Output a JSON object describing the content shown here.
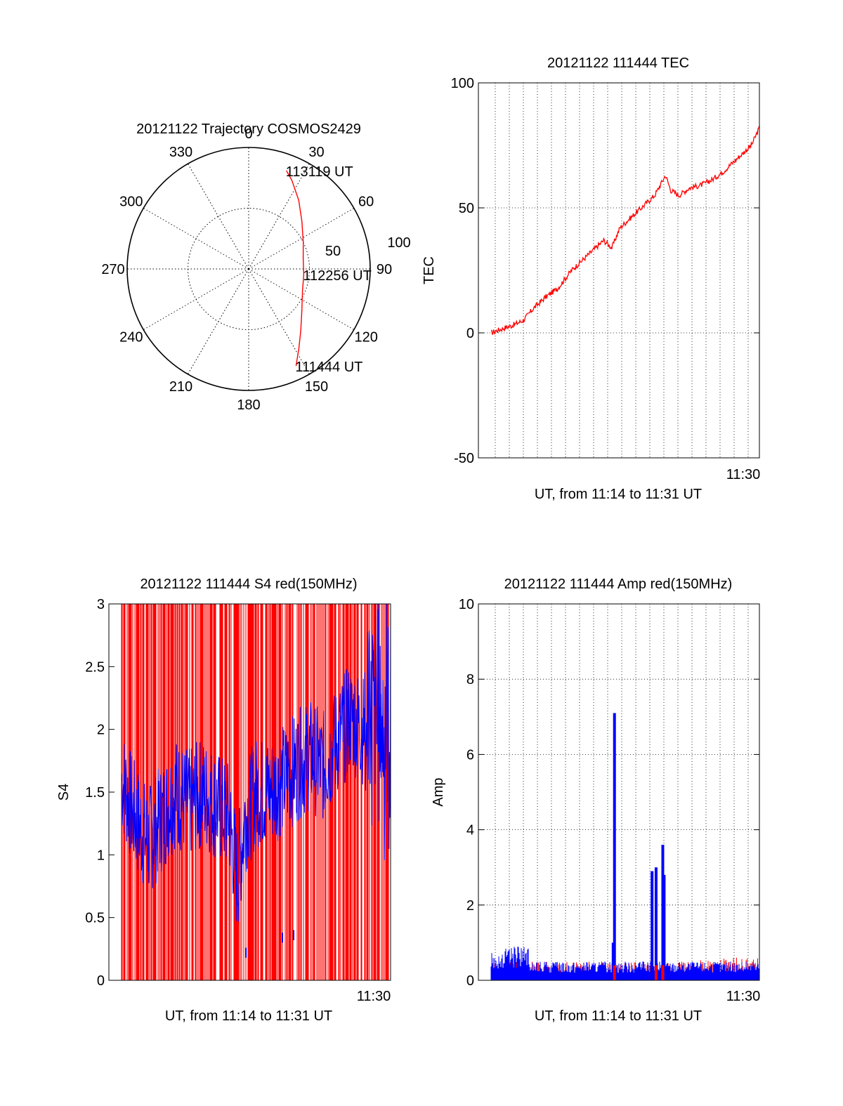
{
  "colors": {
    "red": "#ff0000",
    "blue": "#0000ff",
    "grid": "#000000",
    "text": "#000000"
  },
  "chart_data": [
    {
      "type": "polar",
      "title": "20121122 Trajectory COSMOS2429",
      "angle_labels": [
        "0",
        "30",
        "60",
        "90",
        "120",
        "150",
        "180",
        "210",
        "240",
        "270",
        "300",
        "330"
      ],
      "radial_labels": [
        "50",
        "100"
      ],
      "series": [
        {
          "color": "red",
          "points": [
            {
              "az": 154,
              "el": 10
            },
            {
              "az": 148,
              "el": 20
            },
            {
              "az": 140,
              "el": 30
            },
            {
              "az": 128,
              "el": 40
            },
            {
              "az": 112,
              "el": 47
            },
            {
              "az": 96,
              "el": 49
            },
            {
              "az": 80,
              "el": 49
            },
            {
              "az": 64,
              "el": 45
            },
            {
              "az": 48,
              "el": 37
            },
            {
              "az": 36,
              "el": 27
            },
            {
              "az": 26,
              "el": 17
            },
            {
              "az": 21,
              "el": 12
            }
          ]
        }
      ],
      "annotations": [
        {
          "text": "113119 UT",
          "az": 21,
          "el": 12
        },
        {
          "text": "112256 UT",
          "az": 96,
          "el": 49
        },
        {
          "text": "111444 UT",
          "az": 154,
          "el": 10
        }
      ]
    },
    {
      "type": "line",
      "title": "20121122 111444 TEC",
      "xlabel": "UT, from 11:14 to 11:31 UT",
      "ylabel": "TEC",
      "ylim": [
        -50,
        100
      ],
      "yticks": [
        -50,
        0,
        50,
        100
      ],
      "xtick_label": "11:30",
      "grid": true,
      "series": [
        {
          "color": "red",
          "x": [
            0,
            0.05,
            0.08,
            0.12,
            0.16,
            0.2,
            0.25,
            0.3,
            0.34,
            0.38,
            0.42,
            0.45,
            0.48,
            0.5,
            0.53,
            0.57,
            0.61,
            0.65,
            0.67,
            0.7,
            0.74,
            0.78,
            0.82,
            0.86,
            0.9,
            0.94,
            0.97,
            1.0
          ],
          "y": [
            0,
            2,
            3,
            5,
            10,
            14,
            18,
            25,
            29,
            33,
            37,
            34,
            42,
            44,
            47,
            51,
            55,
            63,
            57,
            55,
            58,
            59,
            61,
            64,
            68,
            72,
            75,
            82
          ]
        }
      ]
    },
    {
      "type": "bar",
      "title": "20121122 111444 S4 red(150MHz)",
      "xlabel": "UT, from 11:14 to 11:31 UT",
      "ylabel": "S4",
      "ylim": [
        0,
        3
      ],
      "yticks": [
        "0",
        "0.5",
        "1",
        "1.5",
        "2",
        "2.5",
        "3"
      ],
      "xtick_label": "11:30",
      "grid": false,
      "series": [
        {
          "name": "",
          "color": "red",
          "description_values": "full-height spikes 0–3"
        },
        {
          "color": "blue",
          "x": [
            0,
            0.05,
            0.1,
            0.15,
            0.2,
            0.25,
            0.3,
            0.35,
            0.4,
            0.43,
            0.46,
            0.5,
            0.55,
            0.6,
            0.65,
            0.7,
            0.75,
            0.8,
            0.85,
            0.9,
            0.95,
            1.0
          ],
          "y": [
            1.6,
            1.3,
            1.1,
            1.3,
            1.5,
            1.4,
            1.5,
            1.4,
            1.3,
            0.8,
            1.3,
            1.5,
            1.5,
            1.6,
            1.7,
            1.8,
            1.7,
            1.9,
            2.1,
            2.0,
            2.2,
            1.9
          ]
        }
      ]
    },
    {
      "type": "bar",
      "title": "20121122 111444 Amp red(150MHz)",
      "xlabel": "UT, from 11:14 to 11:31 UT",
      "ylabel": "Amp",
      "ylim": [
        0,
        10
      ],
      "yticks": [
        0,
        2,
        4,
        6,
        8,
        10
      ],
      "xtick_label": "11:30",
      "grid": true,
      "series": [
        {
          "color": "blue",
          "baseline": 0.4,
          "spikes": [
            {
              "x": 0.46,
              "y": 7.1
            },
            {
              "x": 0.455,
              "y": 1.0
            },
            {
              "x": 0.6,
              "y": 2.9
            },
            {
              "x": 0.615,
              "y": 3.0
            },
            {
              "x": 0.64,
              "y": 3.6
            },
            {
              "x": 0.645,
              "y": 2.8
            }
          ]
        },
        {
          "color": "red",
          "baseline": 0.5
        }
      ]
    }
  ]
}
